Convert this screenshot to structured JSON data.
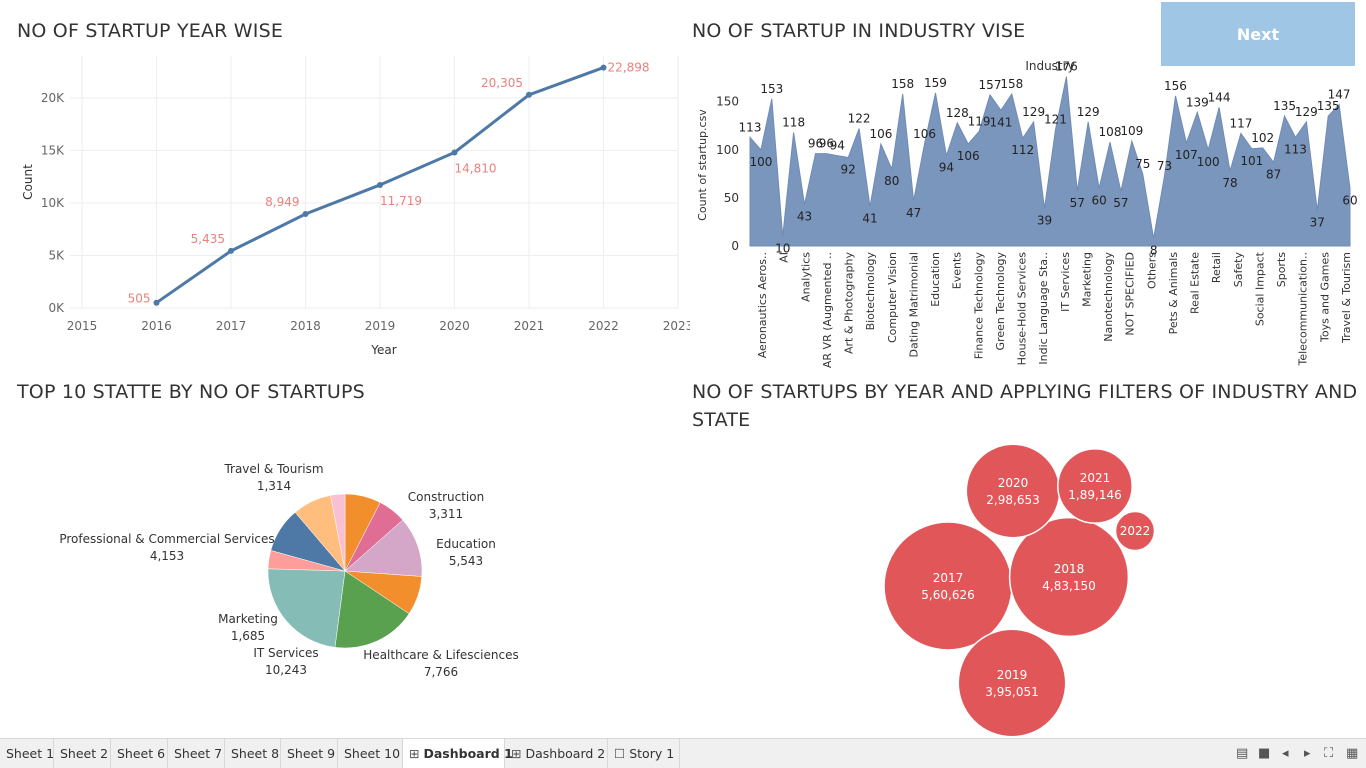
{
  "next_button": "Next",
  "titles": {
    "line": "NO OF STARTUP YEAR WISE",
    "area": "NO OF STARTUP IN INDUSTRY VISE",
    "pie": "TOP 10 STATTE BY NO OF STARTUPS",
    "bubble_1": "NO OF STARTUPS BY YEAR AND APPLYING FILTERS OF  INDUSTRY AND",
    "bubble_2": "STATE"
  },
  "colors": {
    "line": "#4e79a7",
    "line_labels": "#e8827d",
    "area": "#7b96bd",
    "bubble": "#e15759",
    "next_bg": "#a0c6e6"
  },
  "tabs": [
    {
      "label": "Sheet 1",
      "icon": ""
    },
    {
      "label": "Sheet 2",
      "icon": ""
    },
    {
      "label": "Sheet 6",
      "icon": ""
    },
    {
      "label": "Sheet 7",
      "icon": ""
    },
    {
      "label": "Sheet 8",
      "icon": ""
    },
    {
      "label": "Sheet 9",
      "icon": ""
    },
    {
      "label": "Sheet 10",
      "icon": ""
    },
    {
      "label": "Dashboard 1",
      "icon": "dashboard-icon",
      "active": true
    },
    {
      "label": "Dashboard 2",
      "icon": "dashboard-icon"
    },
    {
      "label": "Story 1",
      "icon": "story-icon"
    }
  ],
  "chart_data": [
    {
      "type": "line",
      "xlabel": "Year",
      "ylabel": "Count",
      "x_ticks": [
        "2015",
        "2016",
        "2017",
        "2018",
        "2019",
        "2020",
        "2021",
        "2022",
        "2023"
      ],
      "y_ticks": [
        "0K",
        "5K",
        "10K",
        "15K",
        "20K"
      ],
      "xlim": [
        2015,
        2023
      ],
      "ylim": [
        0,
        24000
      ],
      "grid": true,
      "points": [
        {
          "x": 2016,
          "y": 505,
          "label": "505"
        },
        {
          "x": 2017,
          "y": 5435,
          "label": "5,435"
        },
        {
          "x": 2018,
          "y": 8949,
          "label": "8,949"
        },
        {
          "x": 2019,
          "y": 11719,
          "label": "11,719"
        },
        {
          "x": 2020,
          "y": 14810,
          "label": "14,810"
        },
        {
          "x": 2021,
          "y": 20305,
          "label": "20,305"
        },
        {
          "x": 2022,
          "y": 22898,
          "label": "22,898"
        }
      ]
    },
    {
      "type": "area",
      "header": "Industry",
      "ylabel": "Count of startup.csv",
      "y_ticks": [
        "0",
        "50",
        "100",
        "150"
      ],
      "ylim": [
        0,
        185
      ],
      "categories": [
        "Aeronautics Aeros..",
        "AI",
        "Analytics",
        "AR VR (Augmented ..",
        "Art & Photography",
        "Biotechnology",
        "Computer Vision",
        "Dating Matrimonial",
        "Education",
        "Events",
        "Finance Technology",
        "Green Technology",
        "House-Hold Services",
        "Indic Language Sta..",
        "IT Services",
        "Marketing",
        "Nanotechnology",
        "NOT SPECIFIED",
        "Others",
        "Pets & Animals",
        "Real Estate",
        "Retail",
        "Safety",
        "Social Impact",
        "Sports",
        "Telecommunication..",
        "Toys and Games",
        "Travel & Tourism"
      ],
      "values": [
        113,
        100,
        153,
        10,
        118,
        43,
        96,
        96,
        94,
        92,
        122,
        41,
        106,
        80,
        158,
        47,
        106,
        159,
        94,
        128,
        106,
        119,
        157,
        141,
        158,
        112,
        129,
        39,
        121,
        176,
        57,
        129,
        60,
        108,
        57,
        109,
        75,
        8,
        73,
        156,
        107,
        139,
        100,
        144,
        78,
        117,
        101,
        102,
        87,
        135,
        113,
        129,
        37,
        135,
        147,
        60
      ],
      "labels": [
        "113",
        "100",
        "153",
        "10",
        "118",
        "43",
        "96",
        "96",
        "94",
        "92",
        "122",
        "41",
        "106",
        "80",
        "158",
        "47",
        "106",
        "159",
        "94",
        "128",
        "106",
        "119",
        "157",
        "141",
        "158",
        "112",
        "129",
        "39",
        "121",
        "176",
        "57",
        "129",
        "60",
        "108",
        "57",
        "109",
        "75",
        "8",
        "73",
        "156",
        "107",
        "139",
        "100",
        "144",
        "78",
        "117",
        "101",
        "102",
        "87",
        "135",
        "113",
        "129",
        "37",
        "135",
        "147",
        "60"
      ]
    },
    {
      "type": "pie",
      "slices": [
        {
          "label": "Construction",
          "value": 3311,
          "value_label": "3,311",
          "color": "#f28e2b"
        },
        {
          "label": "",
          "value": 2600,
          "value_label": "",
          "color": "#e06d93"
        },
        {
          "label": "Education",
          "value": 5543,
          "value_label": "5,543",
          "color": "#d4a6c8"
        },
        {
          "label": "",
          "value": 3600,
          "value_label": "",
          "color": "#f28e2b"
        },
        {
          "label": "Healthcare & Lifesciences",
          "value": 7766,
          "value_label": "7,766",
          "color": "#59a14f"
        },
        {
          "label": "IT Services",
          "value": 10243,
          "value_label": "10,243",
          "color": "#86bcb6"
        },
        {
          "label": "Marketing",
          "value": 1685,
          "value_label": "1,685",
          "color": "#ff9d9a"
        },
        {
          "label": "Professional & Commercial Services",
          "value": 4153,
          "value_label": "4,153",
          "color": "#4e79a7"
        },
        {
          "label": "",
          "value": 3600,
          "value_label": "",
          "color": "#ffbe7d"
        },
        {
          "label": "Travel & Tourism",
          "value": 1314,
          "value_label": "1,314",
          "color": "#fabfd2"
        }
      ]
    },
    {
      "type": "bubble",
      "bubbles": [
        {
          "year": "2017",
          "value": 560626,
          "value_label": "5,60,626"
        },
        {
          "year": "2018",
          "value": 483150,
          "value_label": "4,83,150"
        },
        {
          "year": "2019",
          "value": 395051,
          "value_label": "3,95,051"
        },
        {
          "year": "2020",
          "value": 298653,
          "value_label": "2,98,653"
        },
        {
          "year": "2021",
          "value": 189146,
          "value_label": "1,89,146"
        },
        {
          "year": "2022",
          "value": 52000,
          "value_label": ""
        }
      ]
    }
  ]
}
